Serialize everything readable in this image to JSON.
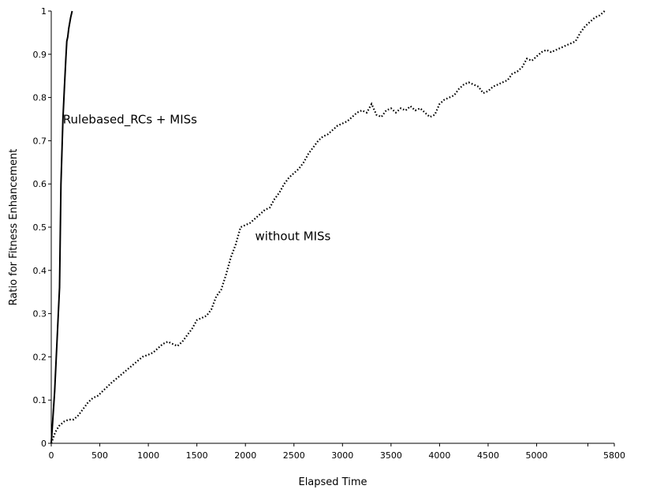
{
  "chart_data": {
    "type": "line",
    "title": "",
    "xlabel": "Elapsed Time",
    "ylabel": "Ratio for Fitness Enhancement",
    "xlim": [
      0,
      5800
    ],
    "ylim": [
      0,
      1
    ],
    "xticks": [
      {
        "value": 0,
        "label": "0"
      },
      {
        "value": 500,
        "label": "500"
      },
      {
        "value": 1000,
        "label": "1000"
      },
      {
        "value": 1500,
        "label": "1500"
      },
      {
        "value": 2000,
        "label": "2000"
      },
      {
        "value": 2500,
        "label": "2500"
      },
      {
        "value": 3000,
        "label": "3000"
      },
      {
        "value": 3500,
        "label": "3500"
      },
      {
        "value": 4000,
        "label": "4000"
      },
      {
        "value": 4500,
        "label": "4500"
      },
      {
        "value": 5000,
        "label": "5000"
      },
      {
        "value": 5528,
        "label": ""
      },
      {
        "value": 5800,
        "label": "5800"
      }
    ],
    "yticks": [
      {
        "value": 0,
        "label": "0"
      },
      {
        "value": 0.1,
        "label": "0.1"
      },
      {
        "value": 0.2,
        "label": "0.2"
      },
      {
        "value": 0.3,
        "label": "0.3"
      },
      {
        "value": 0.4,
        "label": "0.4"
      },
      {
        "value": 0.5,
        "label": "0.5"
      },
      {
        "value": 0.6,
        "label": "0.6"
      },
      {
        "value": 0.7,
        "label": "0.7"
      },
      {
        "value": 0.8,
        "label": "0.8"
      },
      {
        "value": 0.9,
        "label": "0.9"
      },
      {
        "value": 1,
        "label": "1"
      }
    ],
    "grid": false,
    "legend": "none",
    "series": [
      {
        "name": "Rulebased_RCs + MISs",
        "style": "solid",
        "color": "#000000",
        "x": [
          0,
          35,
          60,
          85,
          100,
          120,
          135,
          150,
          160,
          170,
          180,
          200,
          215
        ],
        "y": [
          0,
          0.12,
          0.24,
          0.36,
          0.6,
          0.75,
          0.82,
          0.89,
          0.93,
          0.94,
          0.96,
          0.985,
          1.0
        ]
      },
      {
        "name": "without MISs",
        "style": "dotted",
        "color": "#000000",
        "x": [
          0,
          40,
          80,
          130,
          180,
          230,
          280,
          330,
          380,
          430,
          480,
          550,
          620,
          700,
          780,
          860,
          940,
          1000,
          1050,
          1100,
          1150,
          1200,
          1250,
          1300,
          1350,
          1400,
          1450,
          1500,
          1550,
          1600,
          1650,
          1700,
          1750,
          1800,
          1850,
          1900,
          1950,
          2000,
          2050,
          2100,
          2150,
          2200,
          2250,
          2300,
          2350,
          2400,
          2450,
          2500,
          2550,
          2600,
          2650,
          2700,
          2750,
          2800,
          2850,
          2900,
          2950,
          3000,
          3050,
          3100,
          3150,
          3200,
          3250,
          3300,
          3350,
          3400,
          3450,
          3500,
          3550,
          3600,
          3650,
          3700,
          3750,
          3800,
          3850,
          3900,
          3950,
          4000,
          4050,
          4100,
          4150,
          4200,
          4250,
          4300,
          4350,
          4400,
          4450,
          4500,
          4550,
          4600,
          4650,
          4700,
          4750,
          4800,
          4850,
          4900,
          4950,
          5000,
          5050,
          5100,
          5150,
          5200,
          5250,
          5300,
          5350,
          5400,
          5450,
          5500,
          5550,
          5600,
          5650,
          5700
        ],
        "y": [
          0,
          0.025,
          0.04,
          0.05,
          0.055,
          0.055,
          0.065,
          0.08,
          0.095,
          0.105,
          0.11,
          0.125,
          0.14,
          0.155,
          0.17,
          0.185,
          0.2,
          0.205,
          0.21,
          0.22,
          0.23,
          0.235,
          0.23,
          0.225,
          0.235,
          0.25,
          0.265,
          0.285,
          0.29,
          0.295,
          0.31,
          0.34,
          0.355,
          0.39,
          0.43,
          0.46,
          0.5,
          0.505,
          0.51,
          0.52,
          0.53,
          0.54,
          0.545,
          0.565,
          0.58,
          0.6,
          0.615,
          0.625,
          0.635,
          0.65,
          0.67,
          0.685,
          0.7,
          0.71,
          0.715,
          0.725,
          0.735,
          0.74,
          0.745,
          0.755,
          0.765,
          0.77,
          0.765,
          0.785,
          0.76,
          0.755,
          0.77,
          0.775,
          0.765,
          0.775,
          0.77,
          0.78,
          0.77,
          0.775,
          0.765,
          0.755,
          0.76,
          0.785,
          0.795,
          0.8,
          0.805,
          0.82,
          0.83,
          0.835,
          0.83,
          0.825,
          0.81,
          0.815,
          0.825,
          0.83,
          0.835,
          0.84,
          0.855,
          0.86,
          0.87,
          0.89,
          0.885,
          0.895,
          0.905,
          0.91,
          0.905,
          0.91,
          0.915,
          0.92,
          0.925,
          0.93,
          0.95,
          0.965,
          0.975,
          0.985,
          0.99,
          1.0
        ]
      }
    ],
    "annotations": [
      {
        "text": "Rulebased_RCs + MISs",
        "x": 120,
        "y": 0.74
      },
      {
        "text": "without MISs",
        "x": 2100,
        "y": 0.47
      }
    ]
  }
}
